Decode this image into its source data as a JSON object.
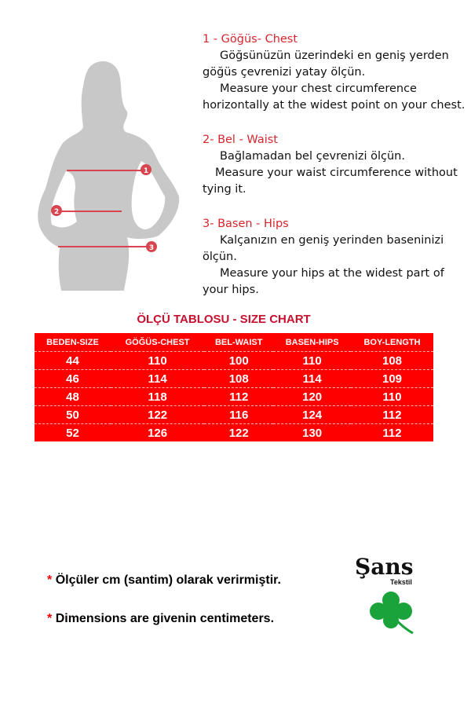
{
  "instructions": [
    {
      "number": "1",
      "heading": "1 - Göğüs- Chest",
      "lines": [
        "Göğsünüzün üzerindeki en geniş yerden",
        "göğüs çevrenizi yatay ölçün.",
        "Measure your chest circumference",
        "horizontally at the widest point on your chest."
      ]
    },
    {
      "number": "2",
      "heading": "2- Bel - Waist",
      "lines": [
        "Bağlamadan bel çevrenizi ölçün.",
        "Measure your waist circumference without",
        "tying it."
      ]
    },
    {
      "number": "3",
      "heading": "3- Basen - Hips",
      "lines": [
        "Kalçanızın en geniş yerinden baseninizi",
        "ölçün.",
        "Measure your hips at the widest part of",
        "your hips."
      ]
    }
  ],
  "size_chart": {
    "title": "ÖLÇÜ TABLOSU - SIZE CHART",
    "columns": [
      "BEDEN-SIZE",
      "GÖĞÜS-CHEST",
      "BEL-WAIST",
      "BASEN-HIPS",
      "BOY-LENGTH"
    ],
    "rows": [
      [
        "44",
        "110",
        "100",
        "110",
        "108"
      ],
      [
        "46",
        "114",
        "108",
        "114",
        "109"
      ],
      [
        "48",
        "118",
        "112",
        "120",
        "110"
      ],
      [
        "50",
        "122",
        "116",
        "124",
        "112"
      ],
      [
        "52",
        "126",
        "122",
        "130",
        "112"
      ]
    ],
    "color": "#ff0000"
  },
  "notes": [
    {
      "star": "*",
      "text": "Ölçüler  cm (santim) olarak verirmiştir."
    },
    {
      "star": "*",
      "text": "Dimensions are givenin centimeters."
    }
  ],
  "logo": {
    "name": "Şans",
    "sub": "Tekstil",
    "icon": "clover-icon",
    "color": "#1aa33a"
  }
}
